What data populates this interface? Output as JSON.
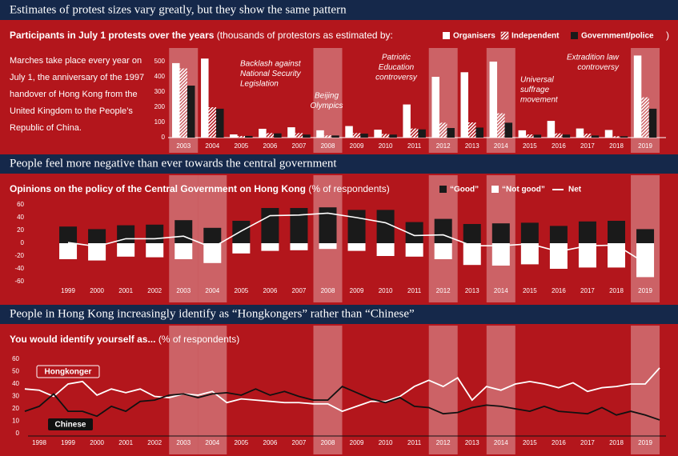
{
  "chart_data": [
    {
      "type": "bar",
      "heading": "Estimates of protest sizes vary greatly, but they show the same pattern",
      "title": "Participants in July 1 protests over the years",
      "subtitle": "(thousands of protestors as estimated by:",
      "subtitle_close": ")",
      "note": "Marches take place every year on July 1, the anniversary of the 1997 handover of Hong Kong from the United Kingdom to the People’s Republic of China.",
      "categories": [
        "2003",
        "2004",
        "2005",
        "2006",
        "2007",
        "2008",
        "2009",
        "2010",
        "2011",
        "2012",
        "2013",
        "2014",
        "2015",
        "2016",
        "2017",
        "2018",
        "2019"
      ],
      "series": [
        {
          "name": "Organisers",
          "color": "#ffffff",
          "values": [
            490,
            520,
            21,
            58,
            68,
            48,
            76,
            52,
            218,
            400,
            430,
            500,
            48,
            110,
            60,
            50,
            540
          ]
        },
        {
          "name": "Independent",
          "color": "#ffffff",
          "pattern": "hatch",
          "values": [
            455,
            200,
            11,
            30,
            30,
            15,
            30,
            24,
            60,
            98,
            100,
            160,
            21,
            28,
            26,
            9,
            265
          ]
        },
        {
          "name": "Government/police",
          "color": "#1a1a1a",
          "values": [
            342,
            190,
            11,
            28,
            20,
            14,
            26,
            20,
            54,
            63,
            66,
            98,
            19,
            20,
            14,
            9,
            190
          ]
        }
      ],
      "ylim": [
        0,
        560
      ],
      "yticks": [
        0,
        100,
        200,
        300,
        400,
        500
      ],
      "highlight": [
        2003,
        2008,
        2012,
        2014,
        2019
      ],
      "annotations": [
        [
          "Backlash against",
          "National Security",
          "Legislation"
        ],
        [
          "Beijing",
          "Olympics"
        ],
        [
          "Patriotic",
          "Education",
          "controversy"
        ],
        [
          "Universal",
          "suffrage",
          "movement"
        ],
        [
          "Extradition law",
          "controversy"
        ]
      ]
    },
    {
      "type": "bar",
      "stacked": true,
      "heading": "People feel more negative than ever towards the central government",
      "title": "Opinions on the policy of the Central Government on Hong Kong",
      "subtitle": "(% of respondents)",
      "categories": [
        "1999",
        "2000",
        "2001",
        "2002",
        "2003",
        "2004",
        "2005",
        "2006",
        "2007",
        "2008",
        "2009",
        "2010",
        "2011",
        "2012",
        "2013",
        "2014",
        "2015",
        "2016",
        "2017",
        "2018",
        "2019"
      ],
      "series": [
        {
          "name": "“Good”",
          "type": "bar",
          "color": "#1a1a1a",
          "values": [
            26,
            22,
            28,
            29,
            36,
            24,
            35,
            55,
            55,
            56,
            52,
            52,
            33,
            38,
            30,
            31,
            32,
            27,
            34,
            35,
            22
          ]
        },
        {
          "name": "“Not good”",
          "type": "bar",
          "color": "#ffffff",
          "values": [
            -25,
            -27,
            -21,
            -22,
            -25,
            -31,
            -16,
            -12,
            -11,
            -9,
            -12,
            -20,
            -21,
            -25,
            -34,
            -35,
            -33,
            -40,
            -38,
            -38,
            -53
          ]
        },
        {
          "name": "Net",
          "type": "line",
          "color": "#ffffff",
          "values": [
            1,
            -5,
            7,
            7,
            11,
            -7,
            19,
            43,
            44,
            47,
            40,
            32,
            12,
            13,
            -4,
            -4,
            -1,
            -13,
            -4,
            -3,
            -31
          ]
        }
      ],
      "ylim": [
        -65,
        65
      ],
      "yticks": [
        -60,
        -40,
        -20,
        0,
        20,
        40,
        60
      ],
      "highlight": [
        2003,
        2004,
        2008,
        2012,
        2014,
        2019
      ]
    },
    {
      "type": "line",
      "heading": "People in Hong Kong increasingly identify as “Hongkongers” rather than “Chinese”",
      "title": "You would identify yourself as...",
      "subtitle": "(% of respondents)",
      "x": [
        1997.5,
        1998,
        1998.5,
        1999,
        1999.5,
        2000,
        2000.5,
        2001,
        2001.5,
        2002,
        2002.5,
        2003,
        2003.5,
        2004,
        2004.5,
        2005,
        2005.5,
        2006,
        2006.5,
        2007,
        2007.5,
        2008,
        2008.5,
        2009,
        2009.5,
        2010,
        2010.5,
        2011,
        2011.5,
        2012,
        2012.5,
        2013,
        2013.5,
        2014,
        2014.5,
        2015,
        2015.5,
        2016,
        2016.5,
        2017,
        2017.5,
        2018,
        2018.5,
        2019,
        2019.5
      ],
      "series": [
        {
          "name": "Hongkonger",
          "color": "#ffffff",
          "values": [
            36,
            35,
            30,
            40,
            42,
            31,
            36,
            33,
            36,
            30,
            29,
            32,
            31,
            34,
            25,
            28,
            27,
            26,
            25,
            25,
            24,
            24,
            18,
            22,
            26,
            26,
            30,
            38,
            43,
            38,
            45,
            27,
            38,
            35,
            40,
            42,
            40,
            37,
            41,
            34,
            37,
            38,
            40,
            40,
            53
          ]
        },
        {
          "name": "Chinese",
          "color": "#111111",
          "values": [
            18,
            22,
            32,
            18,
            18,
            14,
            22,
            18,
            26,
            27,
            31,
            32,
            29,
            32,
            33,
            31,
            36,
            31,
            34,
            30,
            27,
            27,
            38,
            33,
            28,
            25,
            29,
            22,
            21,
            16,
            17,
            21,
            23,
            22,
            20,
            18,
            22,
            18,
            17,
            16,
            21,
            15,
            18,
            15,
            11
          ]
        }
      ],
      "xlim": [
        1997,
        2020
      ],
      "xticks": [
        1998,
        1999,
        2000,
        2001,
        2002,
        2003,
        2004,
        2005,
        2006,
        2007,
        2008,
        2009,
        2010,
        2011,
        2012,
        2013,
        2014,
        2015,
        2016,
        2017,
        2018,
        2019
      ],
      "ylim": [
        0,
        65
      ],
      "yticks": [
        0,
        10,
        20,
        30,
        40,
        50,
        60
      ],
      "highlight": [
        2003,
        2004,
        2008,
        2012,
        2014,
        2019
      ]
    }
  ]
}
